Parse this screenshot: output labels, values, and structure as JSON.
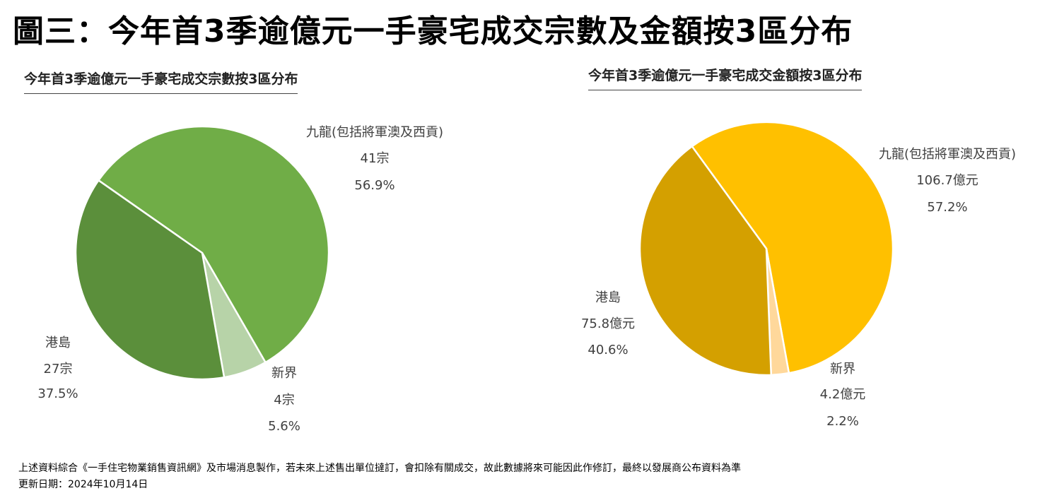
{
  "main_title": "圖三：今年首3季逾億元一手豪宅成交宗數及金額按3區分布",
  "chart_data": [
    {
      "type": "pie",
      "title": "今年首3季逾億元一手豪宅成交宗數按3區分布",
      "slices": [
        {
          "name": "九龍(包括將軍澳及西貢)",
          "value": 41,
          "value_label": "41宗",
          "percent": 56.9,
          "percent_label": "56.9%",
          "color": "#70AD47"
        },
        {
          "name": "新界",
          "value": 4,
          "value_label": "4宗",
          "percent": 5.6,
          "percent_label": "5.6%",
          "color": "#B7D3A8"
        },
        {
          "name": "港島",
          "value": 27,
          "value_label": "27宗",
          "percent": 37.5,
          "percent_label": "37.5%",
          "color": "#5B8F3B"
        }
      ]
    },
    {
      "type": "pie",
      "title": "今年首3季逾億元一手豪宅成交金額按3區分布",
      "slices": [
        {
          "name": "九龍(包括將軍澳及西貢)",
          "value": 106.7,
          "value_label": "106.7億元",
          "percent": 57.2,
          "percent_label": "57.2%",
          "color": "#FFC000"
        },
        {
          "name": "新界",
          "value": 4.2,
          "value_label": "4.2億元",
          "percent": 2.2,
          "percent_label": "2.2%",
          "color": "#FFD89B"
        },
        {
          "name": "港島",
          "value": 75.8,
          "value_label": "75.8億元",
          "percent": 40.6,
          "percent_label": "40.6%",
          "color": "#D4A000"
        }
      ]
    }
  ],
  "footer": {
    "note": "上述資料綜合《一手住宅物業銷售資訊網》及市場消息製作，若未來上述售出單位撻訂，會扣除有關成交，故此數據將來可能因此作修訂，最終以發展商公布資料為準",
    "date": "更新日期：2024年10月14日"
  }
}
